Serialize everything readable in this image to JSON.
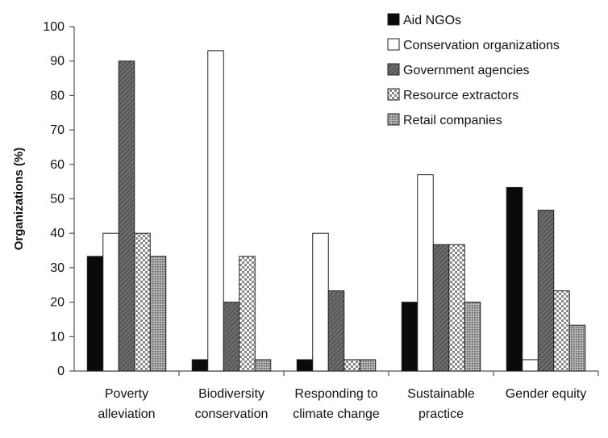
{
  "chart_data": {
    "type": "bar",
    "title": "",
    "xlabel": "",
    "ylabel": "Organizations (%)",
    "ylim": [
      0,
      100
    ],
    "yticks": [
      0,
      10,
      20,
      30,
      40,
      50,
      60,
      70,
      80,
      90,
      100
    ],
    "grid": false,
    "legend_position": "top-right",
    "categories": [
      [
        "Poverty",
        "alleviation"
      ],
      [
        "Biodiversity",
        "conservation"
      ],
      [
        "Responding to",
        "climate change"
      ],
      [
        "Sustainable",
        "practice"
      ],
      [
        "Gender equity"
      ]
    ],
    "series": [
      {
        "name": "Aid NGOs",
        "pattern": "solid-black",
        "values": [
          33.3,
          3.3,
          3.3,
          20,
          53.3
        ]
      },
      {
        "name": "Conservation organizations",
        "pattern": "white",
        "values": [
          40,
          93,
          40,
          57,
          3.3
        ]
      },
      {
        "name": "Government agencies",
        "pattern": "diagonal-gray",
        "values": [
          90,
          20,
          23.3,
          36.7,
          46.7
        ]
      },
      {
        "name": "Resource extractors",
        "pattern": "checker-light",
        "values": [
          40,
          33.3,
          3.3,
          36.7,
          23.3
        ]
      },
      {
        "name": "Retail companies",
        "pattern": "dotted-gray",
        "values": [
          33.3,
          3.3,
          3.3,
          20,
          13.3
        ]
      }
    ]
  }
}
